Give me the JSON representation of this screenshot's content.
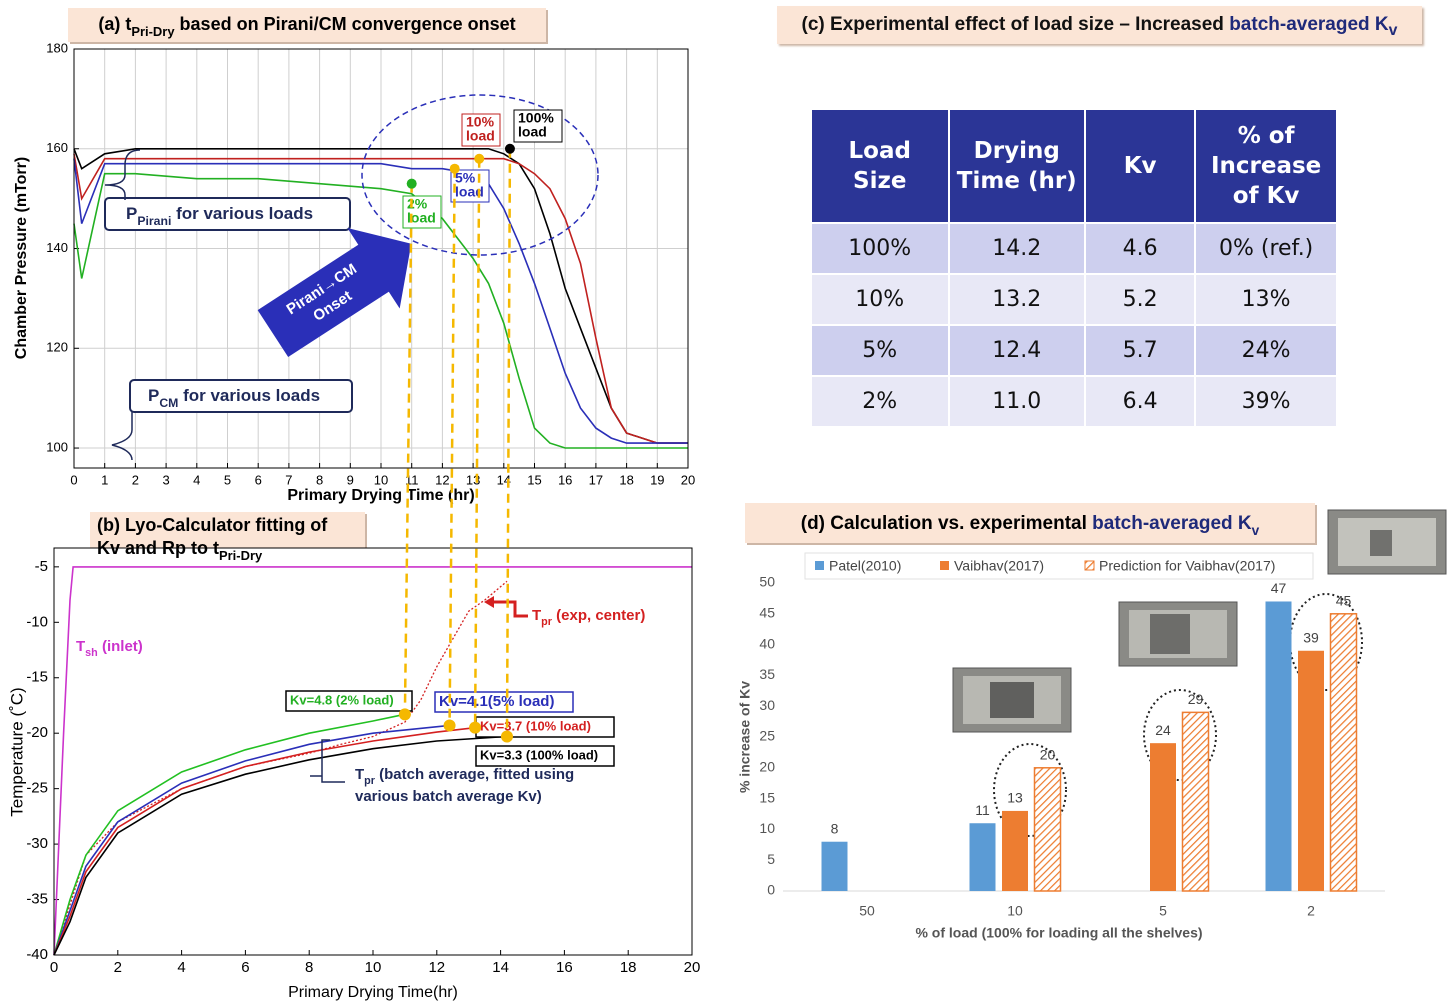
{
  "chart_data": [
    {
      "type": "line",
      "title": [
        "(a) t",
        "Pri-Dry",
        " based on Pirani/CM convergence onset"
      ],
      "x_label": "Primary Drying Time (hr)",
      "y_label": "Chamber Pressure (mTorr)",
      "x": [
        0,
        0.25,
        1,
        2,
        4,
        6,
        8,
        10,
        11,
        12,
        13,
        13.5,
        14,
        14.5,
        15,
        15.5,
        16,
        16.5,
        17,
        17.5,
        18,
        19,
        20
      ],
      "xlim": [
        0,
        20
      ],
      "ylim": [
        96,
        180
      ],
      "xticks": [
        0,
        1,
        2,
        3,
        4,
        5,
        6,
        7,
        8,
        9,
        10,
        11,
        12,
        13,
        14,
        15,
        16,
        17,
        18,
        19,
        20
      ],
      "yticks": [
        100,
        120,
        140,
        160,
        180
      ],
      "grid": true,
      "series": [
        {
          "color": "#000000",
          "values": [
            160,
            156,
            159,
            160,
            160,
            160,
            160,
            160,
            160,
            160,
            160,
            160,
            159,
            157,
            152,
            143,
            132,
            124,
            116,
            108,
            103,
            101,
            101
          ]
        },
        {
          "color": "#c0211f",
          "values": [
            159,
            150,
            158,
            158,
            158,
            158,
            158,
            158,
            158,
            158,
            158,
            158,
            158,
            157,
            155,
            152,
            146,
            137,
            122,
            108,
            103,
            101,
            101
          ]
        },
        {
          "color": "#2a2fb8",
          "values": [
            158,
            145,
            157,
            157,
            157,
            157,
            157,
            157,
            156,
            156,
            155,
            153,
            148,
            141,
            133,
            124,
            115,
            108,
            104,
            102,
            101,
            101,
            101
          ]
        },
        {
          "color": "#22b022",
          "values": [
            145,
            134,
            155,
            155,
            154,
            154,
            153,
            152,
            151,
            146,
            138,
            133,
            125,
            114,
            104,
            101,
            100,
            100,
            100,
            100,
            100,
            100,
            100
          ]
        }
      ],
      "onset_points": {
        "x": [
          11.0,
          12.4,
          13.2,
          14.2
        ],
        "y": [
          153,
          156,
          158,
          160
        ],
        "colors": [
          "#22b022",
          "#f5b800",
          "#f5b800",
          "#000000"
        ]
      },
      "annotations": {
        "pirani": [
          "P",
          "Pirani",
          " for various loads"
        ],
        "cm": [
          "P",
          "CM",
          " for various loads"
        ],
        "arrow": [
          "Pirani→CM",
          "Onset"
        ],
        "load_10": [
          "10%",
          "load"
        ],
        "load_100": [
          "100%",
          "load"
        ],
        "load_5": [
          "5%",
          "load"
        ],
        "load_2": [
          "2%",
          "load"
        ]
      }
    },
    {
      "type": "line",
      "title": [
        "(b) Lyo-Calculator fitting of",
        "Kv and Rp to t",
        "Pri-Dry"
      ],
      "x_label": "Primary Drying Time(hr)",
      "y_label": "Temperature (˚C)",
      "xlim": [
        0,
        20
      ],
      "ylim": [
        -40,
        -3.3
      ],
      "xticks": [
        0,
        2,
        4,
        6,
        8,
        10,
        12,
        14,
        16,
        18,
        20
      ],
      "yticks": [
        -40,
        -35,
        -30,
        -25,
        -20,
        -15,
        -10,
        -5
      ],
      "grid": false,
      "series": [
        {
          "color": "#cc33cc",
          "x": [
            0,
            0.3,
            0.5,
            0.6,
            5,
            10,
            15,
            20
          ],
          "values": [
            -40,
            -20,
            -8,
            -5,
            -5,
            -5,
            -5,
            -5
          ]
        },
        {
          "color": "#d42020",
          "dash": true,
          "x": [
            0,
            1,
            2,
            4,
            6,
            8,
            9,
            10,
            11,
            11.5,
            12,
            12.5,
            13,
            13.5,
            14.2
          ],
          "values": [
            -40,
            -31,
            -28,
            -25,
            -23,
            -21.8,
            -21,
            -20.3,
            -19,
            -17,
            -14,
            -11.5,
            -9,
            -8,
            -6.3
          ]
        },
        {
          "color": "#22c022",
          "x": [
            0,
            0.5,
            1,
            2,
            4,
            6,
            8,
            10,
            11.0
          ],
          "values": [
            -40,
            -35,
            -31,
            -27,
            -23.5,
            -21.5,
            -20,
            -18.9,
            -18.3
          ]
        },
        {
          "color": "#2a2fb8",
          "x": [
            0,
            0.5,
            1,
            2,
            4,
            6,
            8,
            10,
            12.4
          ],
          "values": [
            -40,
            -36,
            -32,
            -28,
            -24.5,
            -22.5,
            -21,
            -20,
            -19.3
          ]
        },
        {
          "color": "#d42020",
          "x": [
            0,
            0.5,
            1,
            2,
            4,
            6,
            8,
            10,
            12,
            13.2
          ],
          "values": [
            -40,
            -36.5,
            -32.5,
            -28.5,
            -25,
            -23,
            -21.7,
            -20.7,
            -19.9,
            -19.5
          ]
        },
        {
          "color": "#000000",
          "x": [
            0,
            0.5,
            1,
            2,
            4,
            6,
            8,
            10,
            12,
            14.2
          ],
          "values": [
            -40,
            -37,
            -33,
            -29,
            -25.5,
            -23.7,
            -22.4,
            -21.4,
            -20.7,
            -20.3
          ]
        }
      ],
      "end_marker_color": "#f5b800",
      "annotations": {
        "tsh": [
          "T",
          "sh",
          " (inlet)"
        ],
        "tpr_exp": [
          "T",
          "pr",
          " (exp, center)"
        ],
        "tpr_fit": [
          "T",
          "pr",
          " (batch average, fitted using",
          "various batch average Kv)"
        ],
        "kv": [
          "Kv=4.8 (2% load)",
          "Kv=4.1(5% load)",
          "Kv=3.7 (10% load)",
          "Kv=3.3 (100% load)"
        ]
      }
    },
    {
      "type": "bar",
      "title": [
        "(d) Calculation vs. experimental ",
        "batch-averaged K",
        "v"
      ],
      "x_label": "% of load (100% for loading all the shelves)",
      "y_label": "% increase of Kv",
      "categories": [
        "50",
        "10",
        "5",
        "2"
      ],
      "ylim": [
        0,
        50
      ],
      "yticks": [
        0,
        5,
        10,
        15,
        20,
        25,
        30,
        35,
        40,
        45,
        50
      ],
      "legend": "top",
      "series": [
        {
          "name": "Patel(2010)",
          "color": "#5b9bd5",
          "values": [
            8,
            11,
            null,
            47
          ]
        },
        {
          "name": "Vaibhav(2017)",
          "color": "#ed7d31",
          "values": [
            null,
            13,
            24,
            39
          ]
        },
        {
          "name": "Prediction for Vaibhav(2017)",
          "color": "#ed7d31",
          "hatch": true,
          "values": [
            null,
            20,
            29,
            45
          ]
        }
      ]
    }
  ],
  "table": {
    "title": [
      "(c) Experimental effect of load size – Increased ",
      "batch-averaged K",
      "v"
    ],
    "header": [
      "Load Size",
      "Drying Time (hr)",
      "Kv",
      "% of Increase of Kv"
    ],
    "rows": [
      [
        "100%",
        "14.2",
        "4.6",
        "0% (ref.)"
      ],
      [
        "10%",
        "13.2",
        "5.2",
        "13%"
      ],
      [
        "5%",
        "12.4",
        "5.7",
        "24%"
      ],
      [
        "2%",
        "11.0",
        "6.4",
        "39%"
      ]
    ]
  }
}
